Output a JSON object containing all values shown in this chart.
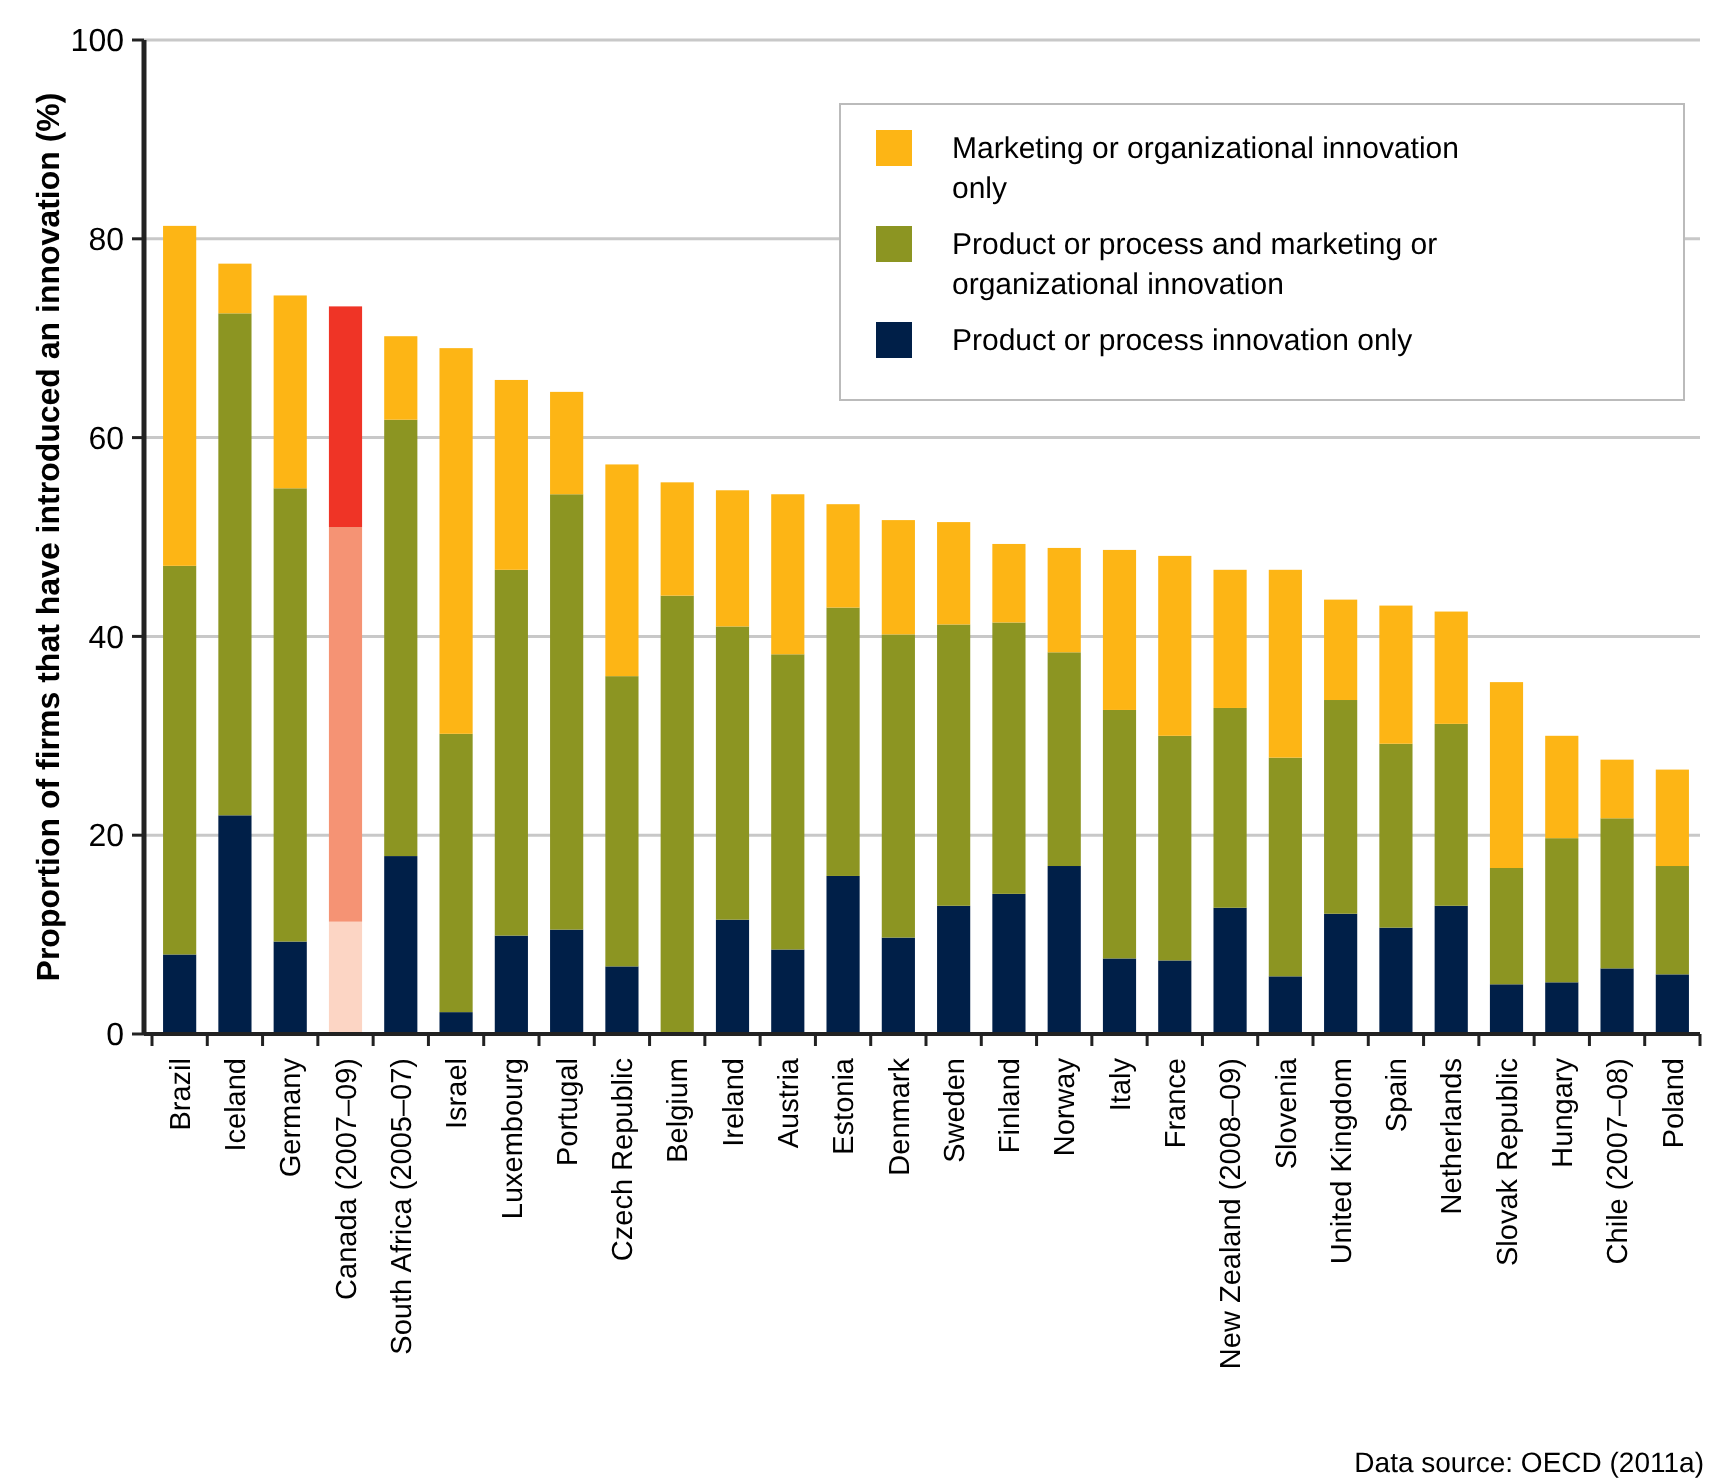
{
  "chart_data": {
    "type": "bar",
    "stacked": true,
    "ylabel": "Proportion of firms that have introduced an innovation (%)",
    "categories": [
      "Brazil",
      "Iceland",
      "Germany",
      "Canada (2007–09)",
      "South Africa (2005–07)",
      "Israel",
      "Luxembourg",
      "Portugal",
      "Czech Republic",
      "Belgium",
      "Ireland",
      "Austria",
      "Estonia",
      "Denmark",
      "Sweden",
      "Finland",
      "Norway",
      "Italy",
      "France",
      "New Zealand (2008–09)",
      "Slovenia",
      "United Kingdom",
      "Spain",
      "Netherlands",
      "Slovak Republic",
      "Hungary",
      "Chile (2007–08)",
      "Poland"
    ],
    "series": [
      {
        "name": "Product or process innovation only",
        "color": "#001f48",
        "colors": [
          "#001f48",
          "#001f48",
          "#001f48",
          "#fcd5c4",
          "#001f48",
          "#001f48",
          "#001f48",
          "#001f48",
          "#001f48",
          "#001f48",
          "#001f48",
          "#001f48",
          "#001f48",
          "#001f48",
          "#001f48",
          "#001f48",
          "#001f48",
          "#001f48",
          "#001f48",
          "#001f48",
          "#001f48",
          "#001f48",
          "#001f48",
          "#001f48",
          "#001f48",
          "#001f48",
          "#001f48",
          "#001f48"
        ],
        "values": [
          8,
          22,
          9.3,
          11.3,
          17.9,
          2.2,
          9.9,
          10.5,
          6.8,
          0,
          11.5,
          8.5,
          15.9,
          9.7,
          12.9,
          14.1,
          16.9,
          7.6,
          7.4,
          12.7,
          5.8,
          12.1,
          10.7,
          12.9,
          5,
          5.2,
          6.6,
          6
        ]
      },
      {
        "name": "Product or process and marketing or organizational innovation",
        "color": "#8c9522",
        "colors": [
          "#8c9522",
          "#8c9522",
          "#8c9522",
          "#f59374",
          "#8c9522",
          "#8c9522",
          "#8c9522",
          "#8c9522",
          "#8c9522",
          "#8c9522",
          "#8c9522",
          "#8c9522",
          "#8c9522",
          "#8c9522",
          "#8c9522",
          "#8c9522",
          "#8c9522",
          "#8c9522",
          "#8c9522",
          "#8c9522",
          "#8c9522",
          "#8c9522",
          "#8c9522",
          "#8c9522",
          "#8c9522",
          "#8c9522",
          "#8c9522",
          "#8c9522"
        ],
        "values": [
          39.1,
          50.5,
          45.6,
          39.7,
          43.9,
          28,
          36.8,
          43.8,
          29.2,
          44.1,
          29.5,
          29.7,
          27,
          30.5,
          28.3,
          27.3,
          21.5,
          25,
          22.6,
          20.1,
          22,
          21.5,
          18.5,
          18.3,
          11.7,
          14.5,
          15.1,
          10.9
        ]
      },
      {
        "name": "Marketing or organizational innovation only",
        "color": "#fdb515",
        "colors": [
          "#fdb515",
          "#fdb515",
          "#fdb515",
          "#ef3426",
          "#fdb515",
          "#fdb515",
          "#fdb515",
          "#fdb515",
          "#fdb515",
          "#fdb515",
          "#fdb515",
          "#fdb515",
          "#fdb515",
          "#fdb515",
          "#fdb515",
          "#fdb515",
          "#fdb515",
          "#fdb515",
          "#fdb515",
          "#fdb515",
          "#fdb515",
          "#fdb515",
          "#fdb515",
          "#fdb515",
          "#fdb515",
          "#fdb515",
          "#fdb515",
          "#fdb515"
        ],
        "values": [
          34.2,
          5,
          19.4,
          22.2,
          8.4,
          38.8,
          19.1,
          10.3,
          21.3,
          11.4,
          13.7,
          16.1,
          10.4,
          11.5,
          10.3,
          7.9,
          10.5,
          16.1,
          18.1,
          13.9,
          18.9,
          10.1,
          13.9,
          11.3,
          18.7,
          10.3,
          5.9,
          9.7
        ]
      }
    ],
    "ylim": [
      0,
      100
    ],
    "yticks": [
      0,
      20,
      40,
      60,
      80,
      100
    ],
    "grid": "y",
    "legend": "top right",
    "annotations": [
      "Data source: OECD (2011a)"
    ]
  }
}
